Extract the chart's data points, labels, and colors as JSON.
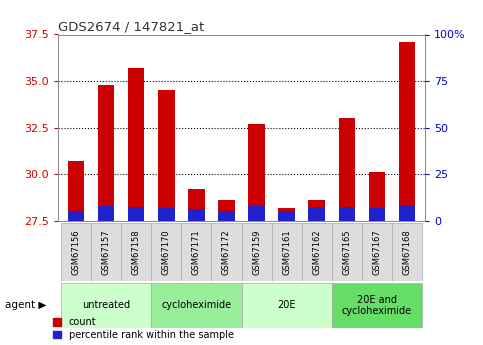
{
  "title": "GDS2674 / 147821_at",
  "samples": [
    "GSM67156",
    "GSM67157",
    "GSM67158",
    "GSM67170",
    "GSM67171",
    "GSM67172",
    "GSM67159",
    "GSM67161",
    "GSM67162",
    "GSM67165",
    "GSM67167",
    "GSM67168"
  ],
  "count_values": [
    30.7,
    34.8,
    35.7,
    34.5,
    29.2,
    28.6,
    32.7,
    28.2,
    28.6,
    33.0,
    30.1,
    37.1
  ],
  "percentile_values": [
    5.5,
    8.0,
    7.5,
    7.0,
    6.5,
    5.0,
    8.0,
    5.5,
    7.5,
    7.5,
    7.0,
    8.5
  ],
  "ymin": 27.5,
  "ymax": 37.5,
  "yticks": [
    27.5,
    30.0,
    32.5,
    35.0,
    37.5
  ],
  "right_yticks_vals": [
    0,
    25,
    50,
    75,
    100
  ],
  "right_ytick_labels": [
    "0",
    "25",
    "50",
    "75",
    "100%"
  ],
  "bar_color_red": "#cc0000",
  "bar_color_blue": "#2222cc",
  "title_color": "#333333",
  "tick_color_left": "#cc0000",
  "tick_color_right": "#0000cc",
  "agent_groups": [
    {
      "label": "untreated",
      "start": 0,
      "end": 3,
      "bg": "#ccffcc"
    },
    {
      "label": "cycloheximide",
      "start": 3,
      "end": 6,
      "bg": "#99ee99"
    },
    {
      "label": "20E",
      "start": 6,
      "end": 9,
      "bg": "#ccffcc"
    },
    {
      "label": "20E and\ncycloheximide",
      "start": 9,
      "end": 12,
      "bg": "#66dd66"
    }
  ],
  "bar_width": 0.55
}
